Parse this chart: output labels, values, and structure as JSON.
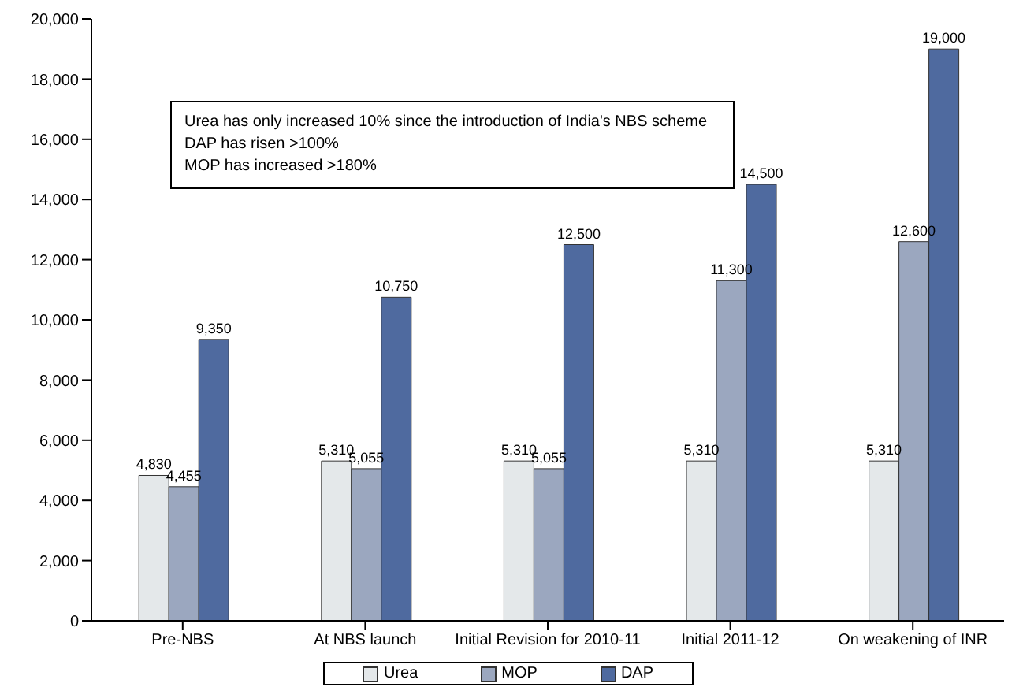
{
  "chart_data": {
    "type": "bar",
    "categories": [
      "Pre-NBS",
      "At NBS launch",
      "Initial Revision for 2010-11",
      "Initial 2011-12",
      "On weakening of INR"
    ],
    "series": [
      {
        "name": "Urea",
        "color": "#e4e8ea",
        "values": [
          4830,
          5310,
          5310,
          5310,
          5310
        ],
        "value_labels": [
          "4,830",
          "5,310",
          "5,310",
          "5,310",
          "5,310"
        ]
      },
      {
        "name": "MOP",
        "color": "#9ba7bf",
        "values": [
          4455,
          5055,
          5055,
          11300,
          12600
        ],
        "value_labels": [
          "4,455",
          "5,055",
          "5,055",
          "11,300",
          "12,600"
        ]
      },
      {
        "name": "DAP",
        "color": "#4f6a9f",
        "values": [
          9350,
          10750,
          12500,
          14500,
          19000
        ],
        "value_labels": [
          "9,350",
          "10,750",
          "12,500",
          "14,500",
          "19,000"
        ]
      }
    ],
    "ylim": [
      0,
      20000
    ],
    "yticks": [
      0,
      {
        "value": 2000,
        "label": "2,000"
      },
      {
        "value": 4000,
        "label": "4,000"
      },
      {
        "value": 6000,
        "label": "6,000"
      },
      {
        "value": 8000,
        "label": "8,000"
      },
      {
        "value": 10000,
        "label": "10,000"
      },
      {
        "value": 12000,
        "label": "12,000"
      },
      {
        "value": 14000,
        "label": "14,000"
      },
      {
        "value": 16000,
        "label": "16,000"
      },
      {
        "value": 18000,
        "label": "18,000"
      },
      {
        "value": 20000,
        "label": "20,000"
      }
    ],
    "grid": false,
    "legend": "bottom",
    "annotations": [
      "Urea has only increased 10% since the introduction of India's NBS scheme",
      "DAP has risen >100%",
      "MOP has increased >180%"
    ]
  }
}
